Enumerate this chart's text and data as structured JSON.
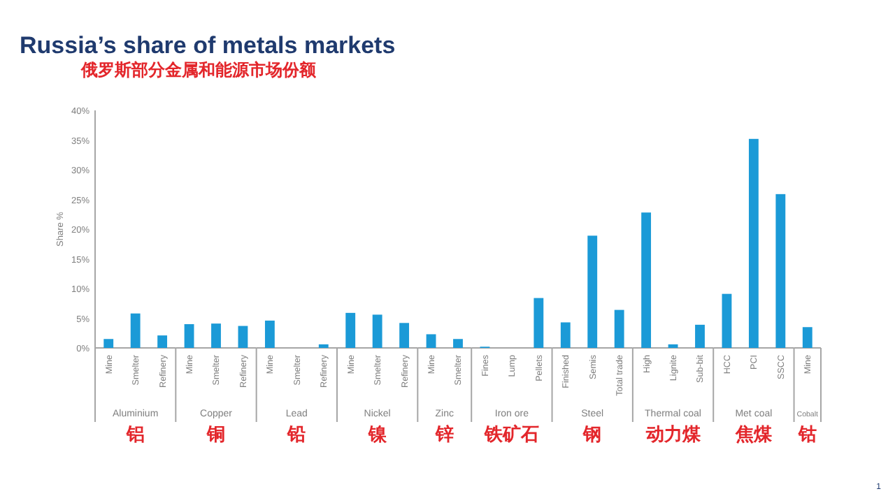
{
  "chart_data": [
    {
      "type": "bar",
      "title": "Russia’s share of metals markets",
      "subtitle": "俄罗斯部分金属和能源市场份额",
      "ylabel": "Share %",
      "xlabel": "Aluminium",
      "annotations": [
        "铝"
      ],
      "categories": [
        "Mine",
        "Smelter",
        "Refinery"
      ],
      "values": [
        1.5,
        5.8,
        2.1
      ],
      "color": "#1b9ad7",
      "ylim": [
        0,
        40
      ],
      "yticks": [
        {
          "value": 0,
          "label": "0%"
        },
        {
          "value": 5,
          "label": "5%"
        },
        {
          "value": 10,
          "label": "10%"
        },
        {
          "value": 15,
          "label": "15%"
        },
        {
          "value": 20,
          "label": "20%"
        },
        {
          "value": 25,
          "label": "25%"
        },
        {
          "value": 30,
          "label": "30%"
        },
        {
          "value": 35,
          "label": "35%"
        },
        {
          "value": 40,
          "label": "40%"
        }
      ]
    },
    {
      "type": "bar",
      "xlabel": "Copper",
      "annotations": [
        "铜"
      ],
      "categories": [
        "Mine",
        "Smelter",
        "Refinery"
      ],
      "values": [
        4.0,
        4.1,
        3.7
      ],
      "color": "#1b9ad7",
      "ylim": [
        0,
        40
      ],
      "tick_labels": "x"
    },
    {
      "type": "bar",
      "xlabel": "Lead",
      "annotations": [
        "铅"
      ],
      "categories": [
        "Mine",
        "Smelter",
        "Refinery"
      ],
      "values": [
        4.6,
        null,
        0.6
      ],
      "color": "#1b9ad7",
      "ylim": [
        0,
        40
      ],
      "tick_labels": "x"
    },
    {
      "type": "bar",
      "xlabel": "Nickel",
      "annotations": [
        "镍"
      ],
      "categories": [
        "Mine",
        "Smelter",
        "Refinery"
      ],
      "values": [
        5.9,
        5.6,
        4.2
      ],
      "color": "#1b9ad7",
      "ylim": [
        0,
        40
      ],
      "tick_labels": "x"
    },
    {
      "type": "bar",
      "xlabel": "Zinc",
      "annotations": [
        "锌"
      ],
      "categories": [
        "Mine",
        "Smelter"
      ],
      "values": [
        2.3,
        1.5
      ],
      "color": "#1b9ad7",
      "ylim": [
        0,
        40
      ],
      "tick_labels": "x"
    },
    {
      "type": "bar",
      "xlabel": "Iron ore",
      "annotations": [
        "铁矿石"
      ],
      "categories": [
        "Fines",
        "Lump",
        "Pellets"
      ],
      "values": [
        0.2,
        null,
        8.4
      ],
      "color": "#1b9ad7",
      "ylim": [
        0,
        40
      ],
      "tick_labels": "x"
    },
    {
      "type": "bar",
      "xlabel": "Steel",
      "annotations": [
        "钢"
      ],
      "categories": [
        "Finished",
        "Semis",
        "Total trade"
      ],
      "values": [
        4.3,
        18.9,
        6.4
      ],
      "color": "#1b9ad7",
      "ylim": [
        0,
        40
      ],
      "tick_labels": "x"
    },
    {
      "type": "bar",
      "xlabel": "Thermal coal",
      "annotations": [
        "动力煤"
      ],
      "categories": [
        "High",
        "Lignite",
        "Sub-bit"
      ],
      "values": [
        22.8,
        0.6,
        3.9
      ],
      "color": "#1b9ad7",
      "ylim": [
        0,
        40
      ],
      "tick_labels": "x"
    },
    {
      "type": "bar",
      "xlabel": "Met coal",
      "annotations": [
        "焦煤"
      ],
      "categories": [
        "HCC",
        "PCI",
        "SSCC"
      ],
      "values": [
        9.1,
        35.2,
        25.9
      ],
      "color": "#1b9ad7",
      "ylim": [
        0,
        40
      ],
      "tick_labels": "x"
    },
    {
      "type": "bar",
      "xlabel": "Cobalt",
      "annotations": [
        "钴",
        "1"
      ],
      "categories": [
        "Mine"
      ],
      "values": [
        3.5
      ],
      "color": "#1b9ad7",
      "ylim": [
        0,
        40
      ],
      "tick_labels": "x"
    }
  ]
}
